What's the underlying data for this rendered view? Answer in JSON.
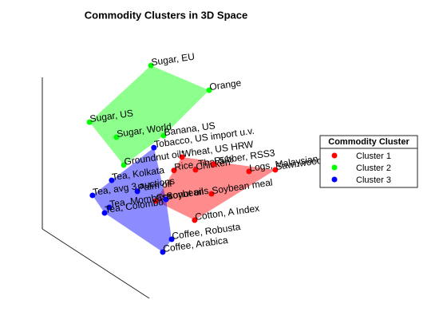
{
  "chart_data": {
    "type": "scatter",
    "title": "Commodity Clusters in 3D Space",
    "legend_title": "Commodity Cluster",
    "legend_position": "right",
    "xlim": [
      0,
      100
    ],
    "ylim": [
      0,
      100
    ],
    "series": [
      {
        "name": "Cluster 1",
        "color": "#ff0000",
        "labels": [
          "Wheat, US HRW",
          "Rice, Thai 5%",
          "Chicken",
          "Rubber, RSS3",
          "Logs, Malaysian",
          "Sawnwood, Malaysian",
          "Soybean meal",
          "Coconut oil",
          "Cotton, A Index"
        ],
        "x": [
          48.1,
          45.4,
          52.7,
          58.9,
          70.8,
          79.7,
          58.1,
          39.2,
          52.4
        ],
        "y": [
          57.2,
          52.0,
          52.2,
          54.4,
          51.6,
          52.2,
          42.8,
          40.0,
          32.5
        ]
      },
      {
        "name": "Cluster 2",
        "color": "#00ff00",
        "labels": [
          "Sugar, EU",
          "Orange",
          "Sugar, US",
          "Sugar, World",
          "Banana, US",
          "Groundnut oil*"
        ],
        "x": [
          37.6,
          57.3,
          16.8,
          25.9,
          41.9,
          28.4
        ],
        "y": [
          93.1,
          83.4,
          70.9,
          65.0,
          65.6,
          54.1
        ]
      },
      {
        "name": "Cluster 3",
        "color": "#0000ff",
        "labels": [
          "Tobacco, US import u.v.",
          "Tea, Kolkata",
          "Tea, avg 3 auctions",
          "Palm oil",
          "Tea, Mombasa",
          "Tea, Colombo",
          "Soybeans",
          "Coffee, Robusta",
          "Coffee, Arabica"
        ],
        "x": [
          38.6,
          24.3,
          17.8,
          33.0,
          23.5,
          21.9,
          42.7,
          44.6,
          41.6
        ],
        "y": [
          60.9,
          48.1,
          42.2,
          43.8,
          37.5,
          35.3,
          40.6,
          25.0,
          20.0
        ]
      }
    ]
  }
}
